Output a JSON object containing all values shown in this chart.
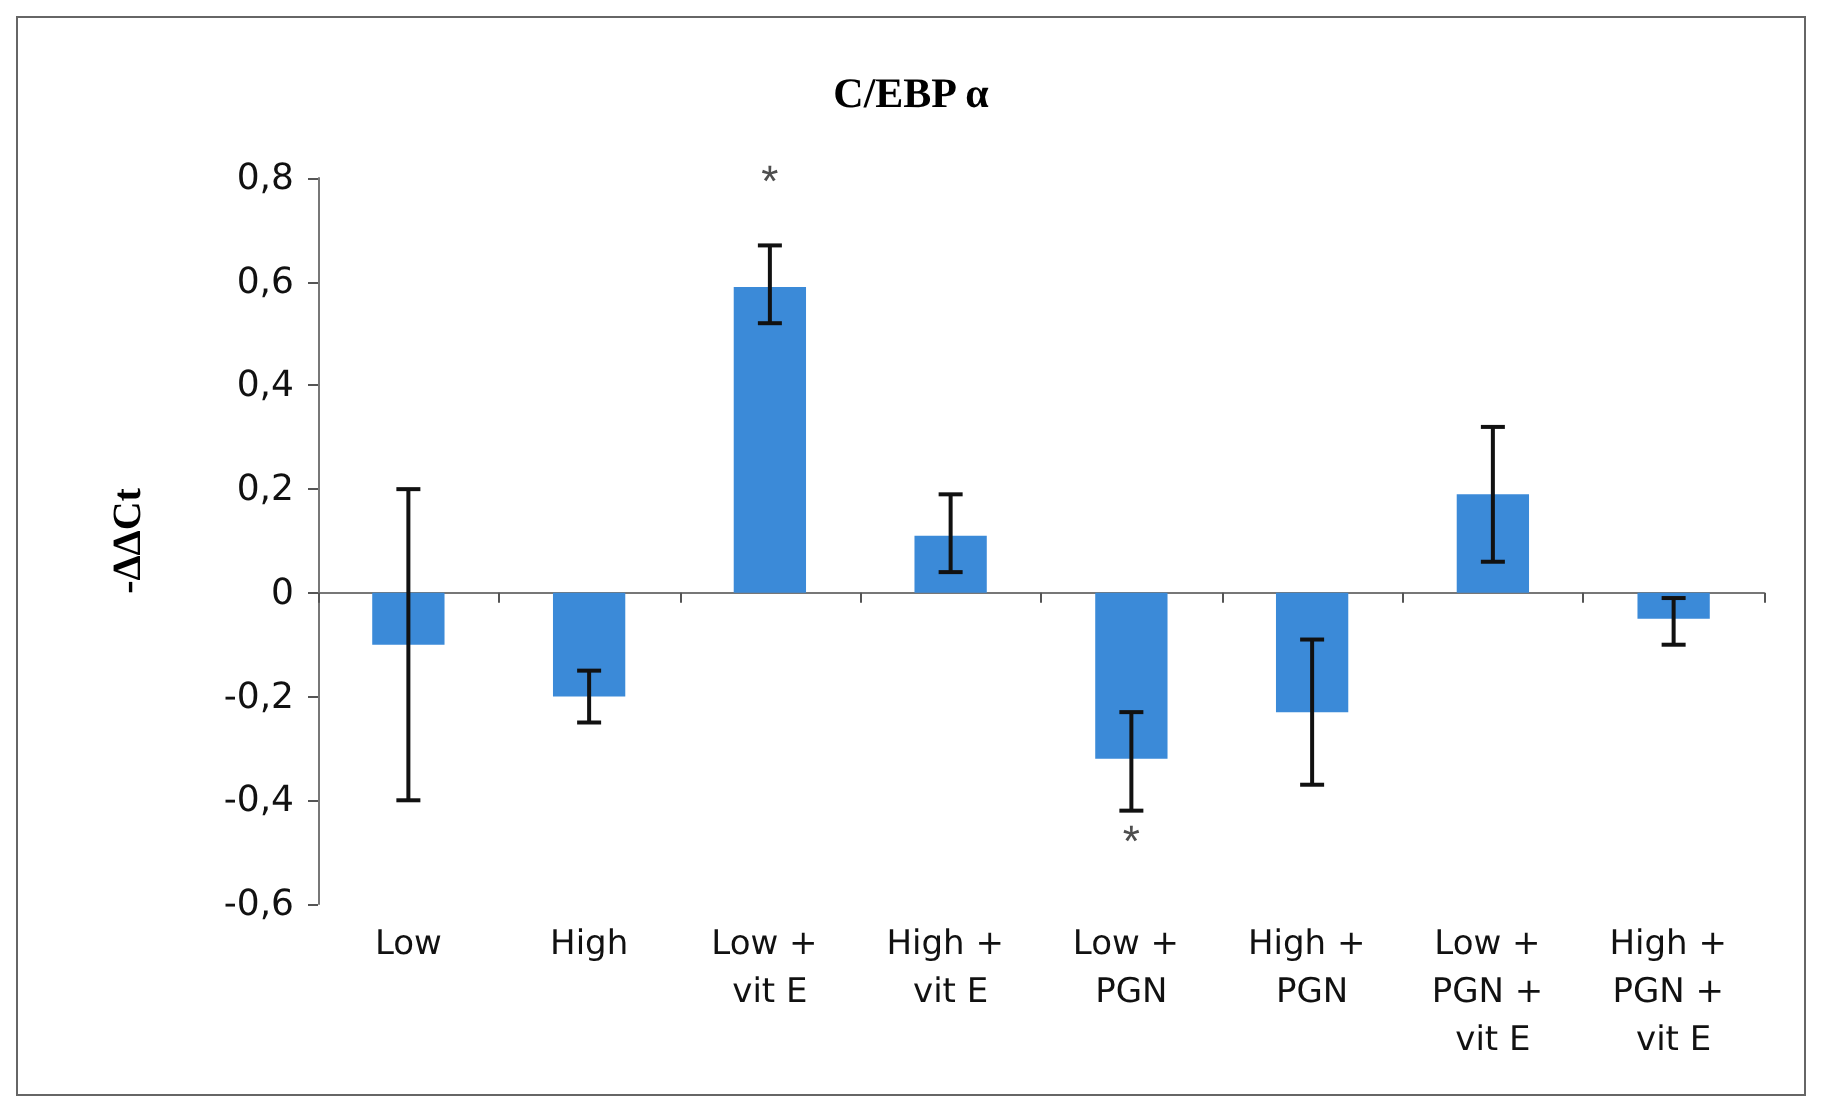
{
  "chart_data": {
    "type": "bar",
    "title": "C/EBP α",
    "ylabel": "-ΔΔCt",
    "categories": [
      "Low",
      "High",
      "Low + vit E",
      "High + vit E",
      "Low + PGN",
      "High + PGN",
      "Low + PGN + vit E",
      "High + PGN + vit E"
    ],
    "values": [
      -0.1,
      -0.2,
      0.59,
      0.11,
      -0.32,
      -0.23,
      0.19,
      -0.05
    ],
    "errors": [
      [
        -0.4,
        0.2
      ],
      [
        -0.25,
        -0.15
      ],
      [
        0.52,
        0.67
      ],
      [
        0.04,
        0.19
      ],
      [
        -0.42,
        -0.23
      ],
      [
        -0.37,
        -0.09
      ],
      [
        0.06,
        0.32
      ],
      [
        -0.1,
        -0.01
      ]
    ],
    "color": "#3b8ad8",
    "ylim": [
      -0.6,
      0.8
    ],
    "yticks": [
      {
        "value": -0.6,
        "label": "-0,6"
      },
      {
        "value": -0.4,
        "label": "-0,4"
      },
      {
        "value": -0.2,
        "label": "-0,2"
      },
      0,
      {
        "value": 0.2,
        "label": "0,2"
      },
      {
        "value": 0.4,
        "label": "0,4"
      },
      {
        "value": 0.6,
        "label": "0,6"
      },
      {
        "value": 0.8,
        "label": "0,8"
      }
    ],
    "annotations": [
      {
        "text": "*",
        "x": "Low + vit E",
        "y": 0.59
      },
      {
        "text": "*",
        "x": "Low + PGN",
        "y": -0.32
      }
    ]
  }
}
